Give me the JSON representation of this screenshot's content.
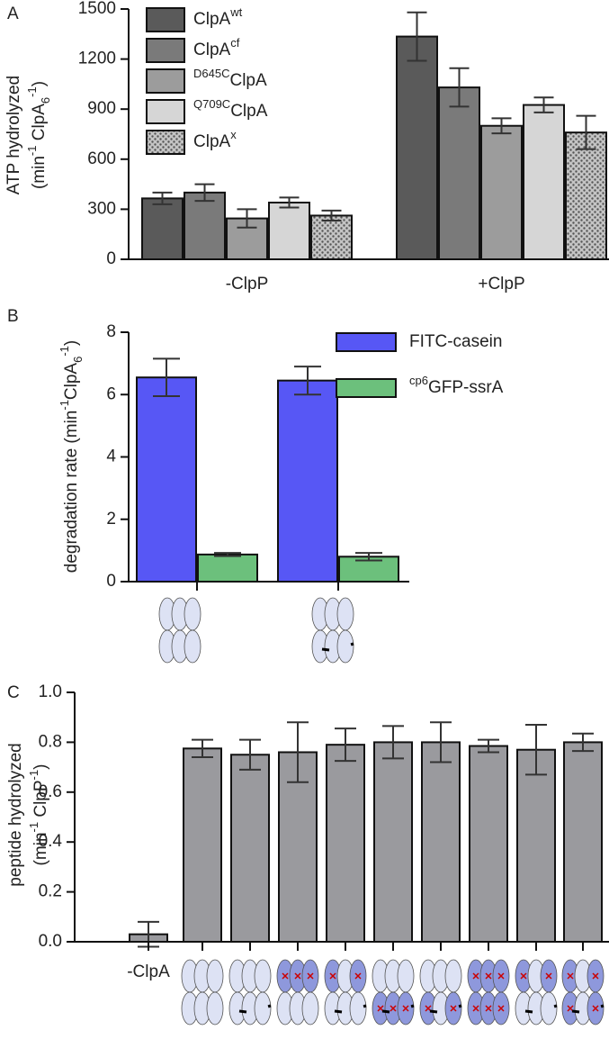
{
  "chart_data": [
    {
      "type": "bar",
      "panel_label": "A",
      "ylabel": [
        [
          {
            "text": "ATP hydrolyzed"
          }
        ],
        [
          {
            "text": "(min"
          },
          {
            "text": "-1",
            "sup": true
          },
          {
            "text": " ClpA"
          },
          {
            "text": "6",
            "sub": true
          },
          {
            "text": "-1",
            "sup": true
          },
          {
            "text": ")"
          }
        ]
      ],
      "categories": [
        "-ClpP",
        "+ClpP"
      ],
      "series": [
        {
          "name": [
            {
              "text": "ClpA"
            },
            {
              "text": "wt",
              "sup": true
            }
          ],
          "color": "#5a5a5a",
          "values": [
            365,
            1335
          ],
          "errors": [
            35,
            145
          ]
        },
        {
          "name": [
            {
              "text": "ClpA"
            },
            {
              "text": "cf",
              "sup": true
            }
          ],
          "color": "#7a7a7a",
          "values": [
            400,
            1030
          ],
          "errors": [
            50,
            115
          ]
        },
        {
          "name": [
            {
              "text": "D645C",
              "sup": true
            },
            {
              "text": "ClpA"
            }
          ],
          "color": "#9c9c9c",
          "values": [
            245,
            800
          ],
          "errors": [
            55,
            45
          ]
        },
        {
          "name": [
            {
              "text": "Q709C",
              "sup": true
            },
            {
              "text": "ClpA"
            }
          ],
          "color": "#d6d6d6",
          "values": [
            340,
            925
          ],
          "errors": [
            30,
            45
          ]
        },
        {
          "name": [
            {
              "text": "ClpA"
            },
            {
              "text": "x",
              "sup": true
            }
          ],
          "color": "#b5b5b5",
          "pattern": "dots",
          "values": [
            262,
            760
          ],
          "errors": [
            30,
            100
          ]
        }
      ],
      "ylim": [
        0,
        1500
      ],
      "yticks": [
        0,
        300,
        600,
        900,
        1200,
        1500
      ]
    },
    {
      "type": "bar",
      "panel_label": "B",
      "ylabel": [
        [
          {
            "text": "degradation rate (min"
          },
          {
            "text": "-1",
            "sup": true
          },
          {
            "text": "ClpA"
          },
          {
            "text": "6",
            "sub": true
          },
          {
            "text": "-1",
            "sup": true
          },
          {
            "text": ")"
          }
        ]
      ],
      "categories": [
        null,
        null
      ],
      "series": [
        {
          "name": [
            {
              "text": "FITC-casein"
            }
          ],
          "color": "#5757f5",
          "values": [
            6.55,
            6.45
          ],
          "errors": [
            0.6,
            0.45
          ]
        },
        {
          "name": [
            {
              "text": "cp6",
              "sup": true
            },
            {
              "text": "GFP-ssrA"
            }
          ],
          "color": "#6cc07c",
          "values": [
            0.87,
            0.8
          ],
          "errors": [
            0.05,
            0.12
          ]
        }
      ],
      "ylim": [
        0,
        8
      ],
      "yticks": [
        0,
        2,
        4,
        6,
        8
      ]
    },
    {
      "type": "bar",
      "panel_label": "C",
      "ylabel": [
        [
          {
            "text": "peptide hydrolyzed"
          }
        ],
        [
          {
            "text": "(min"
          },
          {
            "text": "-1",
            "sup": true
          },
          {
            "text": " ClpP"
          },
          {
            "text": "-1",
            "sup": true
          },
          {
            "text": ")"
          }
        ]
      ],
      "categories": [
        "-ClpA",
        null,
        null,
        null,
        null,
        null,
        null,
        null,
        null,
        null
      ],
      "color": "#9a9a9e",
      "values": [
        0.03,
        0.775,
        0.75,
        0.76,
        0.79,
        0.8,
        0.8,
        0.785,
        0.77,
        0.8
      ],
      "errors": [
        0.05,
        0.035,
        0.06,
        0.12,
        0.065,
        0.065,
        0.08,
        0.025,
        0.1,
        0.035
      ],
      "ylim": [
        0,
        1.0
      ],
      "yticks": [
        {
          "value": 0,
          "label": "0.0"
        },
        {
          "value": 0.2,
          "label": "0.2"
        },
        {
          "value": 0.4,
          "label": "0.4"
        },
        {
          "value": 0.6,
          "label": "0.6"
        },
        {
          "value": 0.8,
          "label": "0.8"
        },
        {
          "value": 1.0,
          "label": "1.0"
        }
      ]
    }
  ]
}
